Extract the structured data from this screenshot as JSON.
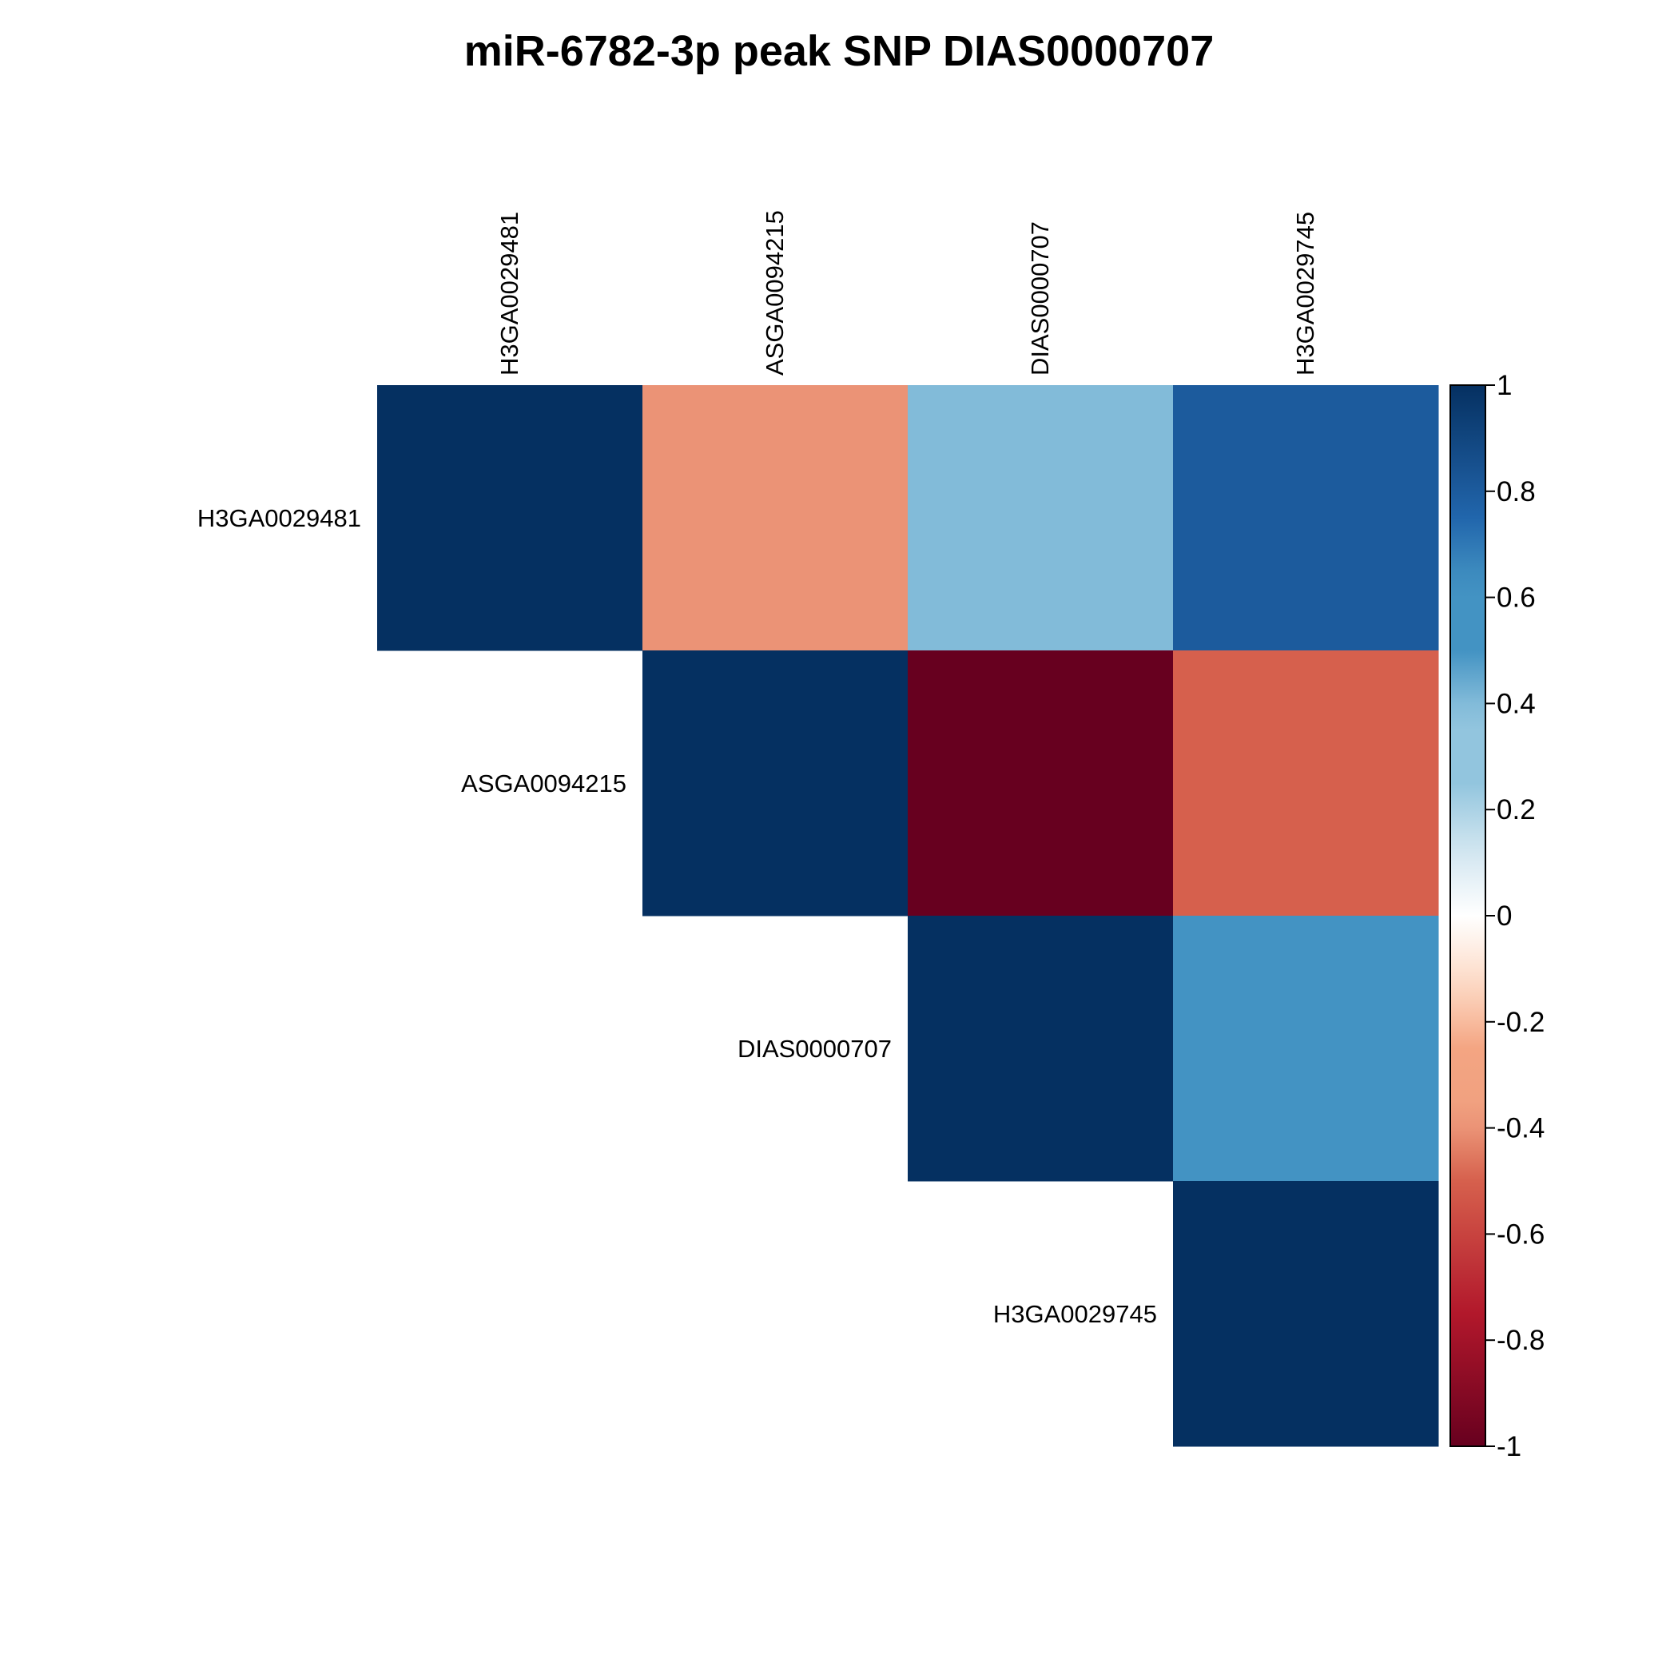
{
  "chart_data": {
    "type": "heatmap",
    "title": "miR-6782-3p peak SNP DIAS0000707",
    "variables": [
      "H3GA0029481",
      "ASGA0094215",
      "DIAS0000707",
      "H3GA0029745"
    ],
    "matrix": [
      [
        1.0,
        -0.4,
        0.4,
        0.8
      ],
      [
        null,
        1.0,
        -1.0,
        -0.5
      ],
      [
        null,
        null,
        1.0,
        0.5
      ],
      [
        null,
        null,
        null,
        1.0
      ]
    ],
    "shape": "upper-triangle",
    "colorbar": {
      "range": [
        -1,
        1
      ],
      "ticks": [
        "1",
        "0.8",
        "0.6",
        "0.4",
        "0.2",
        "0",
        "-0.2",
        "-0.4",
        "-0.6",
        "-0.8",
        "-1"
      ],
      "colors": {
        "negative_end": "#67001F",
        "neutral": "#FFFFFF",
        "positive_end": "#053061"
      }
    }
  }
}
